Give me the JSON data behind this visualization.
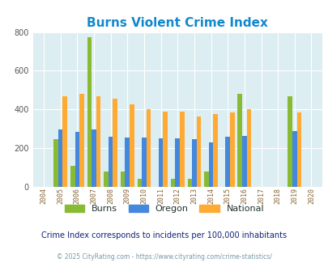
{
  "title": "Burns Violent Crime Index",
  "years": [
    2004,
    2005,
    2006,
    2007,
    2008,
    2009,
    2010,
    2011,
    2012,
    2013,
    2014,
    2015,
    2016,
    2017,
    2018,
    2019,
    2020
  ],
  "burns": [
    0,
    245,
    110,
    775,
    80,
    80,
    40,
    0,
    40,
    40,
    80,
    0,
    480,
    0,
    0,
    470,
    0
  ],
  "oregon": [
    0,
    295,
    285,
    295,
    260,
    255,
    255,
    250,
    250,
    245,
    230,
    260,
    265,
    0,
    0,
    290,
    0
  ],
  "national": [
    0,
    470,
    480,
    470,
    455,
    428,
    400,
    387,
    387,
    365,
    375,
    383,
    400,
    0,
    0,
    383,
    0
  ],
  "burns_color": "#88bb33",
  "oregon_color": "#4488dd",
  "national_color": "#ffaa33",
  "bg_color": "#ddeef2",
  "title_color": "#1188cc",
  "subtitle_color": "#112277",
  "footer_color": "#7799aa",
  "ylabel_max": 800,
  "yticks": [
    0,
    200,
    400,
    600,
    800
  ],
  "subtitle": "Crime Index corresponds to incidents per 100,000 inhabitants",
  "footer": "© 2025 CityRating.com - https://www.cityrating.com/crime-statistics/"
}
